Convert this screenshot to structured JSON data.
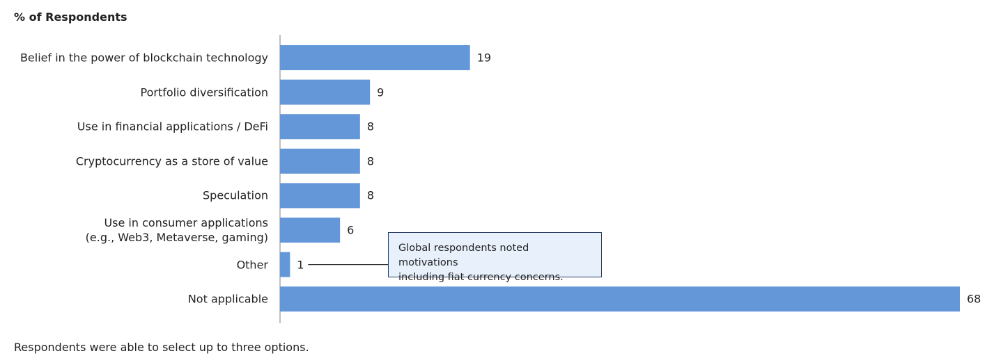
{
  "chart_data": {
    "type": "bar",
    "orientation": "horizontal",
    "title": "% of Respondents",
    "categories": [
      "Belief in the power of blockchain technology",
      "Portfolio diversification",
      "Use in financial applications / DeFi",
      "Cryptocurrency as a store of value",
      "Speculation",
      "Use in consumer applications\n(e.g., Web3, Metaverse, gaming)",
      "Other",
      "Not applicable"
    ],
    "values": [
      19,
      9,
      8,
      8,
      8,
      6,
      1,
      68
    ],
    "color": "#6497d8",
    "annotation": {
      "text": "Global respondents noted motivations\nincluding fiat currency concerns.",
      "category_index": 6
    },
    "footnote": "Respondents were able to select up to three options."
  }
}
